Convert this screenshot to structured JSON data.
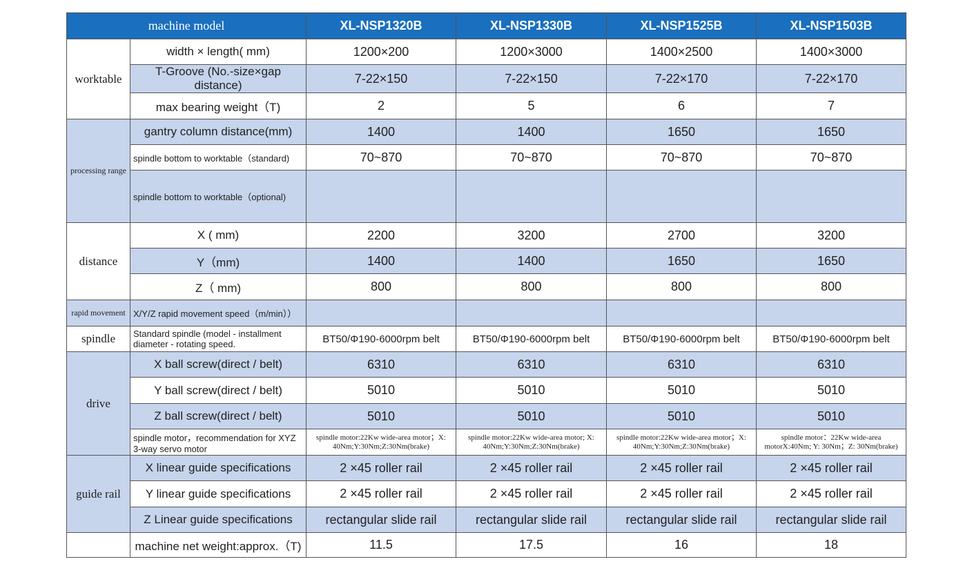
{
  "header": [
    "machine model",
    "XL-NSP1320B",
    "XL-NSP1330B",
    "XL-NSP1525B",
    "XL-NSP1503B"
  ],
  "groups": [
    {
      "label": "worktable",
      "rows": [
        {
          "param": "width × length( mm)",
          "values": [
            "1200×200",
            "1200×3000",
            "1400×2500",
            "1400×3000"
          ]
        },
        {
          "param": "T-Groove (No.-size×gap distance)",
          "values": [
            "7-22×150",
            "7-22×150",
            "7-22×170",
            "7-22×170"
          ]
        },
        {
          "param": "max bearing weight（T)",
          "values": [
            "2",
            "5",
            "6",
            "7"
          ]
        }
      ]
    },
    {
      "label": "processing range",
      "rows": [
        {
          "param": "gantry column distance(mm)",
          "values": [
            "1400",
            "1400",
            "1650",
            "1650"
          ]
        },
        {
          "param": "spindle bottom to worktable（standard)",
          "values": [
            "70~870",
            "70~870",
            "70~870",
            "70~870"
          ]
        },
        {
          "param": "spindle bottom to worktable（optional)",
          "values": [
            null,
            null,
            null,
            null
          ]
        }
      ]
    },
    {
      "label": "distance",
      "rows": [
        {
          "param": "X ( mm)",
          "values": [
            "2200",
            "3200",
            "2700",
            "3200"
          ]
        },
        {
          "param": "Y（mm)",
          "values": [
            "1400",
            "1400",
            "1650",
            "1650"
          ]
        },
        {
          "param": "Z（ mm)",
          "values": [
            "800",
            "800",
            "800",
            "800"
          ]
        }
      ]
    },
    {
      "label": "rapid movement",
      "rows": [
        {
          "param": "X/Y/Z rapid movement speed（m/min））",
          "values": [
            null,
            null,
            null,
            null
          ]
        }
      ]
    },
    {
      "label": "spindle",
      "rows": [
        {
          "param": "Standard spindle (model - installment diameter - rotating speed.",
          "values": [
            "BT50/Φ190-6000rpm belt",
            "BT50/Φ190-6000rpm belt",
            "BT50/Φ190-6000rpm belt",
            "BT50/Φ190-6000rpm belt"
          ]
        }
      ]
    },
    {
      "label": "drive",
      "rows": [
        {
          "param": "X ball screw(direct / belt)",
          "values": [
            "6310",
            "6310",
            "6310",
            "6310"
          ]
        },
        {
          "param": "Y ball screw(direct / belt)",
          "values": [
            "5010",
            "5010",
            "5010",
            "5010"
          ]
        },
        {
          "param": "Z ball screw(direct / belt)",
          "values": [
            "5010",
            "5010",
            "5010",
            "5010"
          ]
        },
        {
          "param": "spindle motor，recommendation for XYZ 3-way servo motor",
          "values": [
            "spindle motor:22Kw wide-area motor；X: 40Nm;Y:30Nm;Z:30Nm(brake)",
            "spindle motor:22Kw wide-area motor; X: 40Nm;Y:30Nm;Z:30Nm(brake)",
            "spindle motor:22Kw wide-area motor；X: 40Nm;Y:30Nm;Z:30Nm(brake)",
            "spindle motor：22Kw wide-area motorX:40Nm; Y: 30Nm；Z: 30Nm(brake)"
          ]
        }
      ]
    },
    {
      "label": "guide rail",
      "rows": [
        {
          "param": "X linear guide specifications",
          "values": [
            "2 ×45 roller rail",
            "2 ×45 roller rail",
            "2 ×45 roller rail",
            "2 ×45 roller rail"
          ]
        },
        {
          "param": "Y linear guide specifications",
          "values": [
            "2 ×45 roller rail",
            "2 ×45 roller rail",
            "2 ×45 roller rail",
            "2 ×45 roller rail"
          ]
        },
        {
          "param": "Z Linear guide specifications",
          "values": [
            "rectangular slide rail",
            "rectangular slide rail",
            "rectangular slide rail",
            "rectangular slide rail"
          ]
        }
      ]
    },
    {
      "label": null,
      "rows": [
        {
          "param": "machine net weight:approx.（T)",
          "values": [
            "11.5",
            "17.5",
            "16",
            "18"
          ]
        }
      ]
    }
  ]
}
